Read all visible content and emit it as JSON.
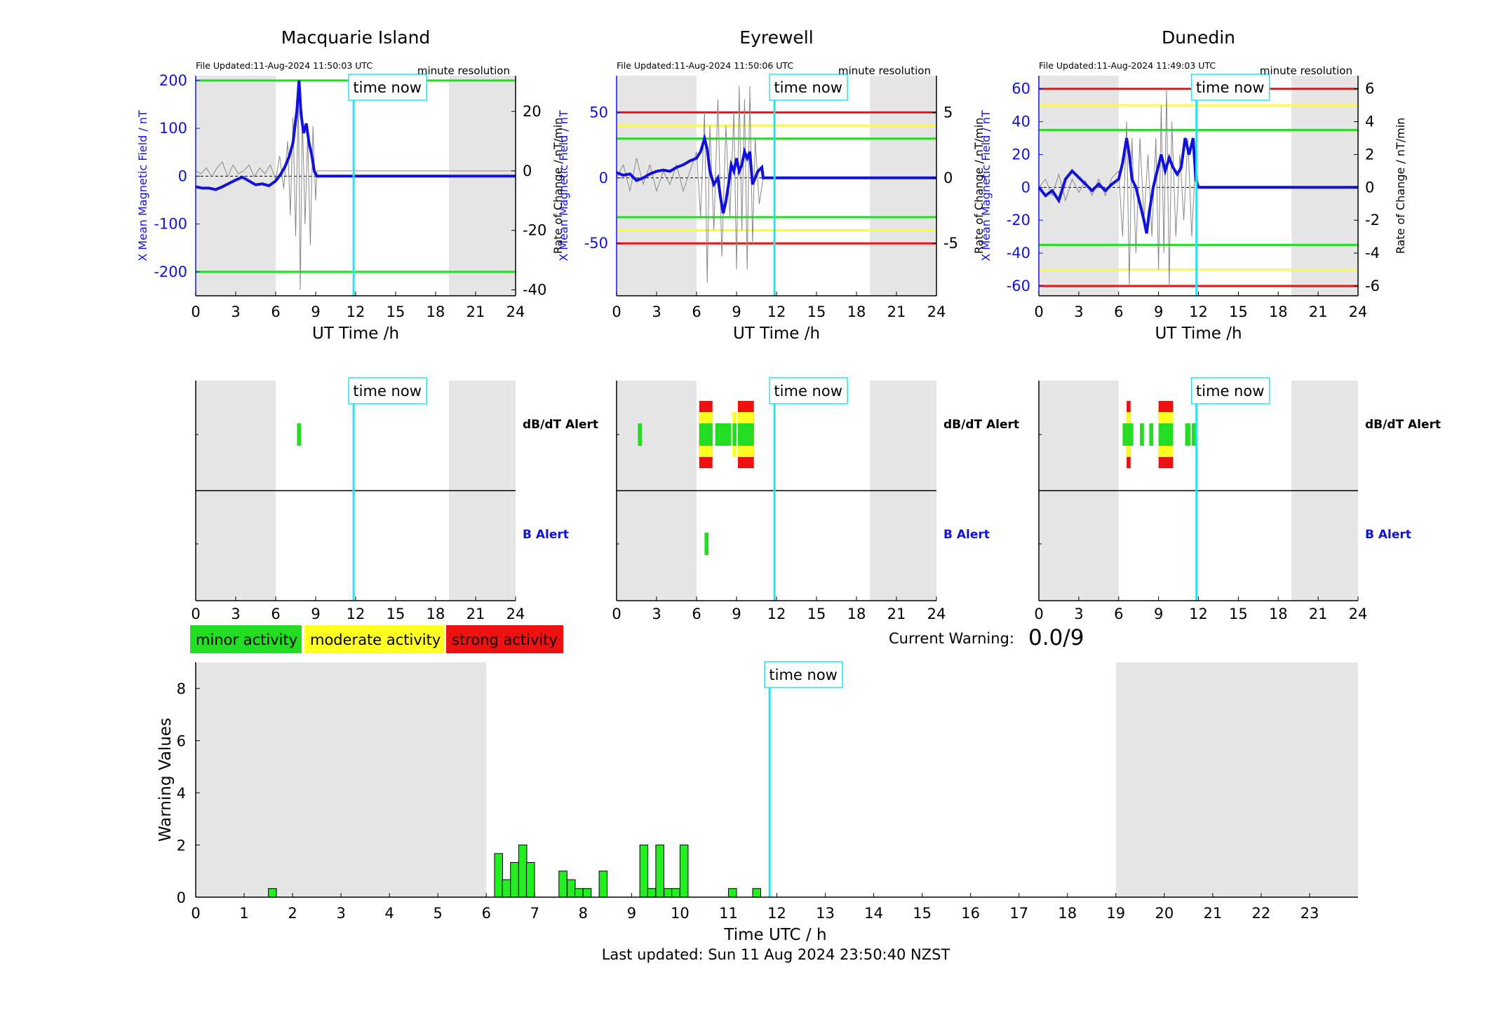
{
  "stations": [
    {
      "name": "Macquarie Island",
      "file_updated": "File Updated:11-Aug-2024 11:50:03 UTC",
      "resolution": "minute resolution",
      "yticks_left": [
        -200,
        -100,
        0,
        100,
        200
      ],
      "yticks_right": [
        -40,
        -20,
        0,
        20
      ],
      "ylim_left": [
        -250,
        210
      ],
      "ylim_right": [
        -42,
        32
      ],
      "thresholds": [
        {
          "value": 200,
          "color": "#22dd22"
        },
        {
          "value": -200,
          "color": "#22dd22"
        }
      ],
      "dbdt_alerts": [
        {
          "t0": 7.6,
          "t1": 7.9,
          "level": "minor"
        }
      ],
      "b_alerts": [],
      "b_curve": [
        [
          0,
          -22
        ],
        [
          0.5,
          -25
        ],
        [
          1,
          -25
        ],
        [
          1.5,
          -28
        ],
        [
          2,
          -22
        ],
        [
          2.5,
          -15
        ],
        [
          3,
          -8
        ],
        [
          3.5,
          -2
        ],
        [
          4,
          -10
        ],
        [
          4.5,
          -18
        ],
        [
          5,
          -16
        ],
        [
          5.5,
          -20
        ],
        [
          6,
          -10
        ],
        [
          6.4,
          5
        ],
        [
          6.7,
          20
        ],
        [
          7,
          40
        ],
        [
          7.3,
          70
        ],
        [
          7.6,
          140
        ],
        [
          7.75,
          200
        ],
        [
          7.9,
          130
        ],
        [
          8.1,
          90
        ],
        [
          8.3,
          110
        ],
        [
          8.5,
          70
        ],
        [
          8.7,
          45
        ],
        [
          8.9,
          10
        ],
        [
          9.1,
          0
        ],
        [
          9.5,
          0
        ],
        [
          24,
          0
        ]
      ],
      "rate_curve": [
        [
          0,
          0
        ],
        [
          0.4,
          -1
        ],
        [
          0.8,
          1
        ],
        [
          1.2,
          -2
        ],
        [
          1.6,
          1
        ],
        [
          2,
          3
        ],
        [
          2.4,
          -2
        ],
        [
          2.8,
          2
        ],
        [
          3.2,
          -1
        ],
        [
          3.6,
          0
        ],
        [
          4,
          2
        ],
        [
          4.4,
          -2
        ],
        [
          4.8,
          1
        ],
        [
          5.2,
          -1
        ],
        [
          5.6,
          2
        ],
        [
          6,
          -3
        ],
        [
          6.3,
          5
        ],
        [
          6.6,
          -6
        ],
        [
          6.9,
          10
        ],
        [
          7.1,
          -15
        ],
        [
          7.3,
          18
        ],
        [
          7.5,
          -22
        ],
        [
          7.7,
          25
        ],
        [
          7.85,
          -40
        ],
        [
          8.0,
          20
        ],
        [
          8.2,
          -18
        ],
        [
          8.4,
          12
        ],
        [
          8.6,
          -25
        ],
        [
          8.8,
          15
        ],
        [
          9.0,
          -10
        ],
        [
          9.1,
          0
        ],
        [
          24,
          0
        ]
      ]
    },
    {
      "name": "Eyrewell",
      "file_updated": "File Updated:11-Aug-2024 11:50:06 UTC",
      "resolution": "minute resolution",
      "yticks_left": [
        -50,
        0,
        50
      ],
      "yticks_right": [
        -5,
        0,
        5
      ],
      "ylim_left": [
        -90,
        78
      ],
      "ylim_right": [
        -9,
        7.8
      ],
      "thresholds": [
        {
          "value": 50,
          "color": "#ee1111"
        },
        {
          "value": 40,
          "color": "#ffff22"
        },
        {
          "value": 30,
          "color": "#22dd22"
        },
        {
          "value": -30,
          "color": "#22dd22"
        },
        {
          "value": -40,
          "color": "#ffff22"
        },
        {
          "value": -50,
          "color": "#ee1111"
        }
      ],
      "dbdt_alerts": [
        {
          "t0": 1.6,
          "t1": 1.9,
          "level": "minor"
        },
        {
          "t0": 6.2,
          "t1": 7.2,
          "level": "strong"
        },
        {
          "t0": 7.4,
          "t1": 8.6,
          "level": "minor"
        },
        {
          "t0": 8.7,
          "t1": 9.0,
          "level": "moderate"
        },
        {
          "t0": 9.1,
          "t1": 10.3,
          "level": "strong"
        }
      ],
      "b_alerts": [
        {
          "t0": 6.6,
          "t1": 6.9,
          "level": "minor"
        }
      ],
      "b_curve": [
        [
          0,
          4
        ],
        [
          0.5,
          2
        ],
        [
          1,
          3
        ],
        [
          1.5,
          -2
        ],
        [
          2,
          0
        ],
        [
          2.5,
          3
        ],
        [
          3,
          5
        ],
        [
          3.5,
          6
        ],
        [
          4,
          5
        ],
        [
          4.5,
          8
        ],
        [
          5,
          10
        ],
        [
          5.5,
          13
        ],
        [
          6,
          15
        ],
        [
          6.3,
          20
        ],
        [
          6.6,
          30
        ],
        [
          6.8,
          22
        ],
        [
          7,
          5
        ],
        [
          7.3,
          -5
        ],
        [
          7.6,
          0
        ],
        [
          7.8,
          -15
        ],
        [
          8,
          -27
        ],
        [
          8.2,
          -18
        ],
        [
          8.4,
          -5
        ],
        [
          8.6,
          10
        ],
        [
          8.8,
          5
        ],
        [
          9,
          15
        ],
        [
          9.2,
          5
        ],
        [
          9.4,
          10
        ],
        [
          9.6,
          20
        ],
        [
          9.8,
          15
        ],
        [
          10,
          20
        ],
        [
          10.2,
          -5
        ],
        [
          10.4,
          0
        ],
        [
          10.6,
          5
        ],
        [
          10.9,
          8
        ],
        [
          11,
          0
        ],
        [
          24,
          0
        ]
      ],
      "rate_curve": [
        [
          0,
          0
        ],
        [
          0.5,
          1
        ],
        [
          1,
          -1
        ],
        [
          1.5,
          1.5
        ],
        [
          2,
          -0.5
        ],
        [
          2.5,
          1
        ],
        [
          3,
          -1
        ],
        [
          3.5,
          0.5
        ],
        [
          4,
          -0.5
        ],
        [
          4.5,
          1
        ],
        [
          5,
          -1
        ],
        [
          5.5,
          0.5
        ],
        [
          6,
          2
        ],
        [
          6.3,
          -3
        ],
        [
          6.6,
          5
        ],
        [
          6.8,
          -8
        ],
        [
          7,
          4
        ],
        [
          7.3,
          -4
        ],
        [
          7.6,
          6
        ],
        [
          7.9,
          -6
        ],
        [
          8.2,
          4
        ],
        [
          8.5,
          -3
        ],
        [
          8.8,
          5
        ],
        [
          9,
          -7
        ],
        [
          9.2,
          7
        ],
        [
          9.4,
          -4
        ],
        [
          9.6,
          6
        ],
        [
          9.8,
          -7
        ],
        [
          10,
          7
        ],
        [
          10.2,
          -5
        ],
        [
          10.4,
          3
        ],
        [
          10.7,
          -2
        ],
        [
          11,
          0
        ],
        [
          24,
          0
        ]
      ]
    },
    {
      "name": "Dunedin",
      "file_updated": "File Updated:11-Aug-2024 11:49:03 UTC",
      "resolution": "minute resolution",
      "yticks_left": [
        -60,
        -40,
        -20,
        0,
        20,
        40,
        60
      ],
      "yticks_right": [
        -6,
        -4,
        -2,
        0,
        2,
        4,
        6
      ],
      "ylim_left": [
        -66,
        68
      ],
      "ylim_right": [
        -6.6,
        6.8
      ],
      "thresholds": [
        {
          "value": 60,
          "color": "#ee1111"
        },
        {
          "value": 50,
          "color": "#ffff22"
        },
        {
          "value": 35,
          "color": "#22dd22"
        },
        {
          "value": -35,
          "color": "#22dd22"
        },
        {
          "value": -50,
          "color": "#ffff22"
        },
        {
          "value": -60,
          "color": "#ee1111"
        }
      ],
      "dbdt_alerts": [
        {
          "t0": 6.3,
          "t1": 7.1,
          "level": "minor"
        },
        {
          "t0": 6.6,
          "t1": 6.9,
          "level": "strong"
        },
        {
          "t0": 7.6,
          "t1": 7.9,
          "level": "minor"
        },
        {
          "t0": 8.3,
          "t1": 8.6,
          "level": "minor"
        },
        {
          "t0": 9.0,
          "t1": 10.1,
          "level": "strong"
        },
        {
          "t0": 11.0,
          "t1": 11.4,
          "level": "minor"
        },
        {
          "t0": 11.5,
          "t1": 11.8,
          "level": "minor"
        }
      ],
      "b_alerts": [],
      "b_curve": [
        [
          0,
          0
        ],
        [
          0.5,
          -5
        ],
        [
          1,
          -2
        ],
        [
          1.5,
          -8
        ],
        [
          2,
          5
        ],
        [
          2.5,
          10
        ],
        [
          3,
          6
        ],
        [
          3.5,
          2
        ],
        [
          4,
          -2
        ],
        [
          4.5,
          2
        ],
        [
          5,
          -2
        ],
        [
          5.5,
          2
        ],
        [
          6,
          5
        ],
        [
          6.3,
          15
        ],
        [
          6.6,
          30
        ],
        [
          6.8,
          20
        ],
        [
          7,
          5
        ],
        [
          7.3,
          0
        ],
        [
          7.6,
          -10
        ],
        [
          7.9,
          -20
        ],
        [
          8.1,
          -28
        ],
        [
          8.3,
          -15
        ],
        [
          8.6,
          0
        ],
        [
          8.9,
          10
        ],
        [
          9.2,
          20
        ],
        [
          9.5,
          10
        ],
        [
          9.8,
          18
        ],
        [
          10.1,
          12
        ],
        [
          10.4,
          8
        ],
        [
          10.7,
          12
        ],
        [
          11,
          30
        ],
        [
          11.3,
          20
        ],
        [
          11.6,
          30
        ],
        [
          11.8,
          5
        ],
        [
          12,
          0
        ],
        [
          24,
          0
        ]
      ],
      "rate_curve": [
        [
          0,
          0
        ],
        [
          0.5,
          0.5
        ],
        [
          1,
          -0.5
        ],
        [
          1.5,
          0.8
        ],
        [
          2,
          -0.8
        ],
        [
          2.5,
          0.5
        ],
        [
          3,
          -0.3
        ],
        [
          3.5,
          0.4
        ],
        [
          4,
          -0.5
        ],
        [
          4.5,
          0.5
        ],
        [
          5,
          -0.5
        ],
        [
          5.5,
          0.6
        ],
        [
          6,
          1
        ],
        [
          6.3,
          -3
        ],
        [
          6.6,
          4
        ],
        [
          6.8,
          -6
        ],
        [
          7,
          3
        ],
        [
          7.3,
          -4
        ],
        [
          7.6,
          3
        ],
        [
          7.9,
          -2
        ],
        [
          8.2,
          2
        ],
        [
          8.5,
          -3
        ],
        [
          8.8,
          3
        ],
        [
          9,
          -5
        ],
        [
          9.2,
          5
        ],
        [
          9.4,
          -4
        ],
        [
          9.6,
          6
        ],
        [
          9.8,
          -6
        ],
        [
          10,
          4
        ],
        [
          10.3,
          -3
        ],
        [
          10.6,
          2
        ],
        [
          10.9,
          -2
        ],
        [
          11.2,
          3
        ],
        [
          11.5,
          -3
        ],
        [
          11.8,
          2
        ],
        [
          12,
          0
        ],
        [
          24,
          0
        ]
      ]
    }
  ],
  "labels": {
    "time_now": "time now",
    "xlabel_ut": "UT Time /h",
    "ylabel_left": "X Mean Magnetic Field / nT",
    "ylabel_right": "Rate of Change / nT/min",
    "dbdt_alert": "dB/dT Alert",
    "b_alert": "B Alert",
    "current_warning_label": "Current Warning:",
    "current_warning_value": "0.0/9",
    "last_updated": "Last updated: Sun 11 Aug 2024 23:50:40 NZST"
  },
  "legend": [
    {
      "label": "minor activity",
      "color": "#22dd22"
    },
    {
      "label": "moderate activity",
      "color": "#ffff22"
    },
    {
      "label": "strong activity",
      "color": "#ee1111"
    }
  ],
  "time_now_h": 11.85,
  "night_shading": [
    [
      0,
      6
    ],
    [
      19,
      24
    ]
  ],
  "station_xticks": [
    0,
    3,
    6,
    9,
    12,
    15,
    18,
    21,
    24
  ],
  "chart_data": {
    "type": "bar",
    "xlabel": "Time UTC / h",
    "ylabel": "Warning Values",
    "xlim": [
      0,
      24
    ],
    "ylim": [
      0,
      9
    ],
    "xticks": [
      0,
      1,
      2,
      3,
      4,
      5,
      6,
      7,
      8,
      9,
      10,
      11,
      12,
      13,
      14,
      15,
      16,
      17,
      18,
      19,
      20,
      21,
      22,
      23
    ],
    "yticks": [
      0,
      2,
      4,
      6,
      8
    ],
    "bar_width_h": 0.1667,
    "bars": [
      {
        "t": 1.5,
        "v": 0.33
      },
      {
        "t": 6.17,
        "v": 1.67
      },
      {
        "t": 6.33,
        "v": 0.67
      },
      {
        "t": 6.5,
        "v": 1.33
      },
      {
        "t": 6.67,
        "v": 2
      },
      {
        "t": 6.83,
        "v": 1.33
      },
      {
        "t": 7.5,
        "v": 1
      },
      {
        "t": 7.67,
        "v": 0.67
      },
      {
        "t": 7.83,
        "v": 0.33
      },
      {
        "t": 8.0,
        "v": 0.33
      },
      {
        "t": 8.33,
        "v": 1
      },
      {
        "t": 9.17,
        "v": 2
      },
      {
        "t": 9.33,
        "v": 0.33
      },
      {
        "t": 9.5,
        "v": 2
      },
      {
        "t": 9.67,
        "v": 0.33
      },
      {
        "t": 9.83,
        "v": 0.33
      },
      {
        "t": 10.0,
        "v": 2
      },
      {
        "t": 11.0,
        "v": 0.33
      },
      {
        "t": 11.5,
        "v": 0.33
      }
    ]
  }
}
